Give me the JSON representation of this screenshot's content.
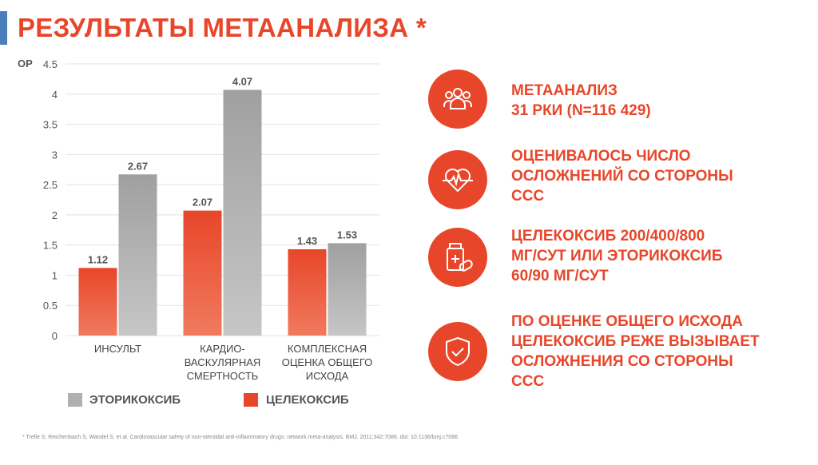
{
  "title": "РЕЗУЛЬТАТЫ МЕТААНАЛИЗА *",
  "chart_data": {
    "type": "bar",
    "ylabel": "ОР",
    "ylim": [
      0,
      4.5
    ],
    "yticks": [
      "0",
      "0.5",
      "1",
      "1.5",
      "2",
      "2.5",
      "3",
      "3.5",
      "4",
      "4.5"
    ],
    "grid": true,
    "categories": [
      "ИНСУЛЬТ",
      "КАРДИО-\nВАСКУЛЯРНАЯ\nСМЕРТНОСТЬ",
      "КОМПЛЕКСНАЯ\nОЦЕНКА ОБЩЕГО\nИСХОДА"
    ],
    "series": [
      {
        "name": "ЦЕЛЕКОКСИБ",
        "color": "#e8462a",
        "values": [
          1.12,
          2.07,
          1.43
        ],
        "labels": [
          "1.12",
          "2.07",
          "1.43"
        ]
      },
      {
        "name": "ЭТОРИКОКСИБ",
        "color": "#a6a6a6",
        "values": [
          2.67,
          4.07,
          1.53
        ],
        "labels": [
          "2.67",
          "4.07",
          "1.53"
        ]
      }
    ],
    "legend": "bottom"
  },
  "items": [
    {
      "icon": "people-icon",
      "text": "МЕТААНАЛИЗ\n31 РКИ (N=116 429)"
    },
    {
      "icon": "heart-pulse-icon",
      "text": "ОЦЕНИВАЛОСЬ ЧИСЛО\nОСЛОЖНЕНИЙ СО СТОРОНЫ\nССС"
    },
    {
      "icon": "medicine-icon",
      "text": "ЦЕЛЕКОКСИБ 200/400/800\nМГ/СУТ ИЛИ ЭТОРИКОКСИБ\n60/90 МГ/СУТ"
    },
    {
      "icon": "shield-check-icon",
      "text": "ПО ОЦЕНКЕ ОБЩЕГО ИСХОДА\nЦЕЛЕКОКСИБ РЕЖЕ ВЫЗЫВАЕТ\nОСЛОЖНЕНИЯ СО СТОРОНЫ\nССС"
    }
  ],
  "footnote": "* Trelle S, Reichenbach S, Wandel S, et al. Cardiovascular safety of non-steroidal anti-inflammatory drugs: network meta-analysis. BMJ. 2011;342:7086. doi: 10.1136/bmj.c7086"
}
